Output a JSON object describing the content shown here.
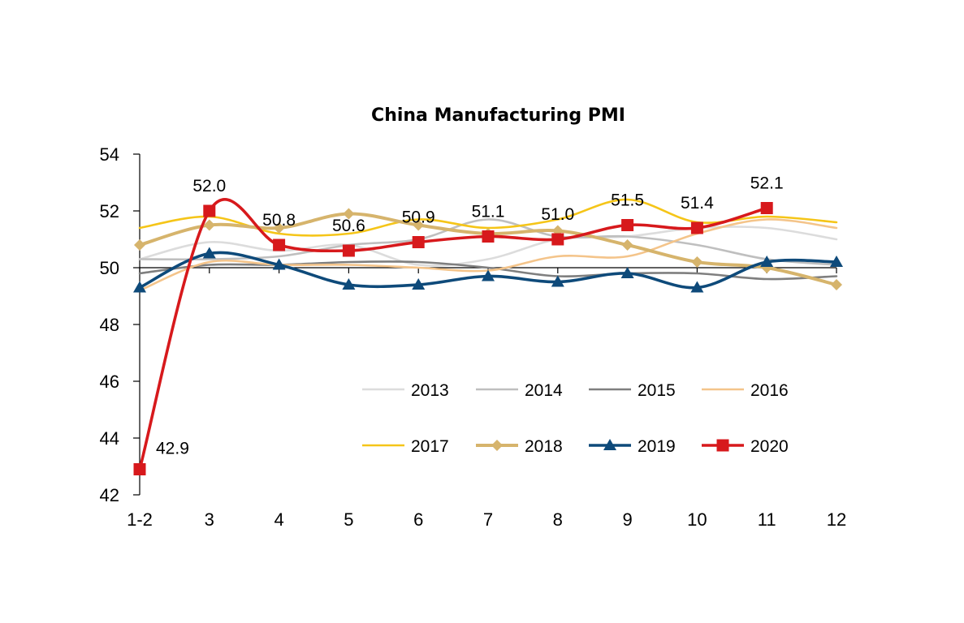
{
  "chart_data": {
    "type": "line",
    "title": "China Manufacturing PMI",
    "xlabel": "",
    "ylabel": "",
    "categories": [
      "1-2",
      "3",
      "4",
      "5",
      "6",
      "7",
      "8",
      "9",
      "10",
      "11",
      "12"
    ],
    "ylim": [
      42,
      54
    ],
    "yticks": [
      42,
      44,
      46,
      48,
      50,
      52,
      54
    ],
    "grid": false,
    "legend_position": "lower-right",
    "series": [
      {
        "name": "2013",
        "color": "#dcdcdc",
        "marker": "none",
        "values": [
          50.3,
          50.9,
          50.6,
          50.8,
          50.1,
          50.3,
          51.0,
          51.1,
          51.4,
          51.4,
          51.0
        ]
      },
      {
        "name": "2014",
        "color": "#bfbfbf",
        "marker": "none",
        "values": [
          50.3,
          50.3,
          50.4,
          50.8,
          51.0,
          51.7,
          51.1,
          51.1,
          50.8,
          50.3,
          50.1
        ]
      },
      {
        "name": "2015",
        "color": "#7f7f7f",
        "marker": "none",
        "values": [
          49.8,
          50.1,
          50.1,
          50.2,
          50.2,
          50.0,
          49.7,
          49.8,
          49.8,
          49.6,
          49.7
        ]
      },
      {
        "name": "2016",
        "color": "#f4c48a",
        "marker": "none",
        "values": [
          49.2,
          50.2,
          50.1,
          50.1,
          50.0,
          49.9,
          50.4,
          50.4,
          51.2,
          51.7,
          51.4
        ]
      },
      {
        "name": "2017",
        "color": "#f5c518",
        "marker": "none",
        "values": [
          51.4,
          51.8,
          51.2,
          51.2,
          51.7,
          51.4,
          51.7,
          52.4,
          51.6,
          51.8,
          51.6
        ]
      },
      {
        "name": "2018",
        "color": "#d6b46c",
        "marker": "diamond",
        "values": [
          50.8,
          51.5,
          51.4,
          51.9,
          51.5,
          51.2,
          51.3,
          50.8,
          50.2,
          50.0,
          49.4
        ]
      },
      {
        "name": "2019",
        "color": "#0e4a7a",
        "marker": "triangle",
        "values": [
          49.3,
          50.5,
          50.1,
          49.4,
          49.4,
          49.7,
          49.5,
          49.8,
          49.3,
          50.2,
          50.2
        ]
      },
      {
        "name": "2020",
        "color": "#d7191c",
        "marker": "square",
        "values": [
          42.9,
          52.0,
          50.8,
          50.6,
          50.9,
          51.1,
          51.0,
          51.5,
          51.4,
          52.1,
          null
        ]
      }
    ],
    "annotations": [
      {
        "category": "1-2",
        "text": "42.9"
      },
      {
        "category": "3",
        "text": "52.0"
      },
      {
        "category": "4",
        "text": "50.8"
      },
      {
        "category": "5",
        "text": "50.6"
      },
      {
        "category": "6",
        "text": "50.9"
      },
      {
        "category": "7",
        "text": "51.1"
      },
      {
        "category": "8",
        "text": "51.0"
      },
      {
        "category": "9",
        "text": "51.5"
      },
      {
        "category": "10",
        "text": "51.4"
      },
      {
        "category": "11",
        "text": "52.1"
      }
    ]
  }
}
